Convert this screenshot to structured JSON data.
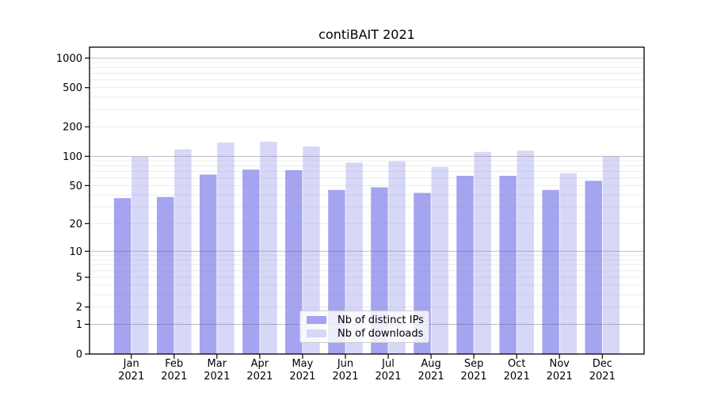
{
  "chart_data": {
    "type": "bar",
    "title": "contiBAIT 2021",
    "categories": [
      "Jan",
      "Feb",
      "Mar",
      "Apr",
      "May",
      "Jun",
      "Jul",
      "Aug",
      "Sep",
      "Oct",
      "Nov",
      "Dec"
    ],
    "year_label": "2021",
    "series": [
      {
        "name": "Nb of distinct IPs",
        "color": "#a4a4f0",
        "values": [
          37,
          38,
          65,
          73,
          72,
          45,
          48,
          42,
          63,
          63,
          45,
          56
        ]
      },
      {
        "name": "Nb of downloads",
        "color": "#d7d7f8",
        "values": [
          99,
          118,
          138,
          141,
          126,
          86,
          89,
          78,
          111,
          114,
          67,
          100
        ]
      }
    ],
    "y_scale": "log1p",
    "y_ticks": [
      0,
      1,
      2,
      5,
      10,
      20,
      50,
      100,
      200,
      500,
      1000
    ],
    "ylim": [
      0,
      1300
    ],
    "grid": {
      "major_ticks": [
        1,
        10,
        100,
        1000
      ],
      "minor": true
    },
    "legend_position": "bottom-center"
  }
}
